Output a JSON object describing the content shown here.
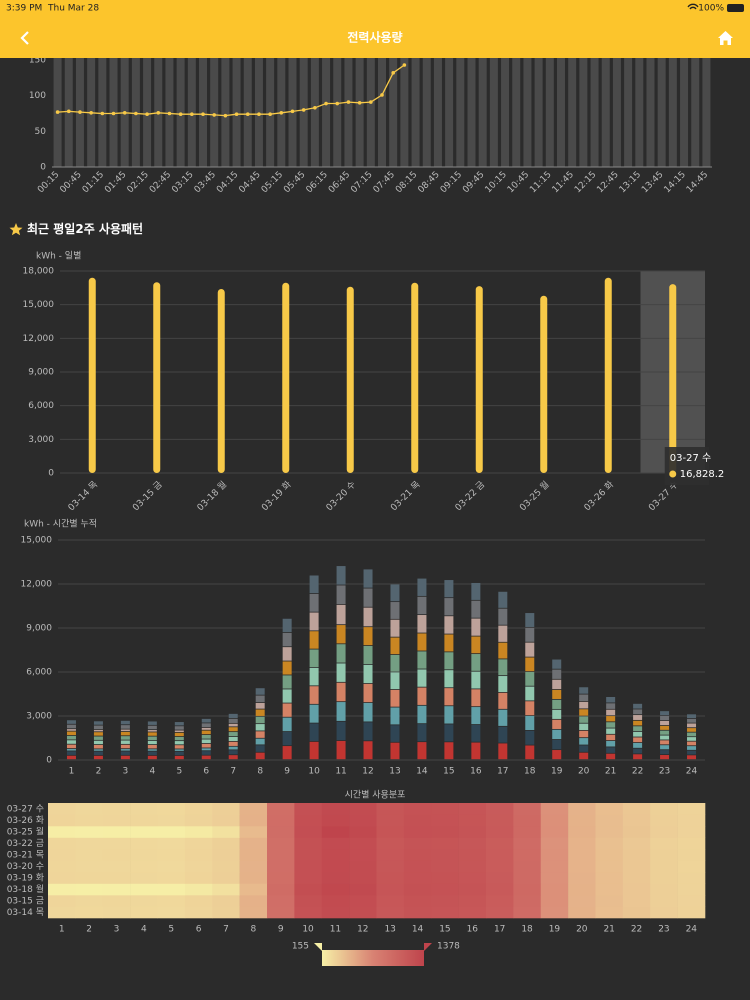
{
  "status_bar": {
    "time": "3:39 PM",
    "date": "Thu Mar 28",
    "battery": "100%"
  },
  "nav": {
    "title": "전력사용량"
  },
  "section_title": "최근 평일2주 사용패턴",
  "chart_data": [
    {
      "type": "line",
      "categories": [
        "00:15",
        null,
        "00:45",
        null,
        "01:15",
        null,
        "01:45",
        null,
        "02:15",
        null,
        "02:45",
        null,
        "03:15",
        null,
        "03:45",
        null,
        "04:15",
        null,
        "04:45",
        null,
        "05:15",
        null,
        "05:45",
        null,
        "06:15",
        null,
        "06:45",
        null,
        "07:15",
        null,
        "07:45",
        null,
        "08:15",
        null,
        "08:45",
        null,
        "09:15",
        null,
        "09:45",
        null,
        "10:15",
        null,
        "10:45",
        null,
        "11:15",
        null,
        "11:45",
        null,
        "12:15",
        null,
        "12:45",
        null,
        "13:15",
        null,
        "13:45",
        null,
        "14:15",
        null,
        "14:45"
      ],
      "values": [
        77,
        78,
        77,
        76,
        75,
        75,
        76,
        75,
        74,
        76,
        75,
        74,
        74,
        74,
        73,
        72,
        74,
        74,
        74,
        74,
        76,
        78,
        80,
        83,
        89,
        89,
        91,
        90,
        91,
        101,
        132,
        143,
        null,
        null,
        null,
        null,
        null,
        null,
        null,
        null,
        null,
        null,
        null,
        null,
        null,
        null,
        null,
        null,
        null,
        null,
        null,
        null,
        null,
        null,
        null,
        null,
        null,
        null,
        null
      ],
      "color": "#f7c948",
      "ylim": [
        0,
        150
      ],
      "yticks": [
        0,
        50,
        100,
        150
      ]
    },
    {
      "type": "bar",
      "y_label": "kWh - 일별",
      "categories": [
        "03-14 목",
        "03-15 금",
        "03-18 월",
        "03-19 화",
        "03-20 수",
        "03-21 목",
        "03-22 금",
        "03-25 월",
        "03-26 화",
        "03-27 수"
      ],
      "values": [
        17400,
        17000,
        16400,
        16950,
        16600,
        16950,
        16650,
        15800,
        17400,
        16828.2
      ],
      "value_labels": [
        null,
        null,
        null,
        null,
        null,
        null,
        null,
        null,
        null,
        "16,828.2"
      ],
      "color": "#f7c948",
      "ylim": [
        0,
        18000
      ],
      "yticks": [
        0,
        {
          "value": 3000,
          "label": "3,000"
        },
        {
          "value": 6000,
          "label": "6,000"
        },
        {
          "value": 9000,
          "label": "9,000"
        },
        {
          "value": 12000,
          "label": "12,000"
        },
        {
          "value": 15000,
          "label": "15,000"
        },
        {
          "value": 18000,
          "label": "18,000"
        }
      ],
      "grid": true
    },
    {
      "type": "stacked_bar",
      "y_label": "kWh - 시간별 누적",
      "categories": [
        "1",
        "2",
        "3",
        "4",
        "5",
        "6",
        "7",
        "8",
        "9",
        "10",
        "11",
        "12",
        "13",
        "14",
        "15",
        "16",
        "17",
        "18",
        "19",
        "20",
        "21",
        "22",
        "23",
        "24"
      ],
      "series": [
        {
          "name": "03-14 목",
          "color": "#c23531",
          "values": [
            290,
            285,
            290,
            285,
            280,
            300,
            330,
            500,
            950,
            1240,
            1300,
            1280,
            1180,
            1220,
            1210,
            1190,
            1130,
            990,
            680,
            500,
            430,
            390,
            340,
            320
          ]
        },
        {
          "name": "03-15 금",
          "color": "#2f4554",
          "values": [
            300,
            290,
            295,
            290,
            285,
            305,
            335,
            505,
            960,
            1250,
            1310,
            1290,
            1190,
            1230,
            1220,
            1200,
            1140,
            1000,
            690,
            495,
            435,
            385,
            335,
            315
          ]
        },
        {
          "name": "03-18 월",
          "color": "#61a0a8",
          "values": [
            160,
            155,
            160,
            158,
            160,
            190,
            240,
            450,
            980,
            1280,
            1340,
            1320,
            1210,
            1250,
            1240,
            1220,
            1160,
            1010,
            690,
            500,
            430,
            385,
            335,
            310
          ]
        },
        {
          "name": "03-19 화",
          "color": "#d48265",
          "values": [
            300,
            295,
            295,
            290,
            285,
            305,
            335,
            500,
            965,
            1260,
            1320,
            1300,
            1200,
            1240,
            1230,
            1210,
            1150,
            1005,
            685,
            495,
            430,
            380,
            330,
            310
          ]
        },
        {
          "name": "03-20 수",
          "color": "#91c7ae",
          "values": [
            295,
            290,
            290,
            285,
            280,
            300,
            330,
            495,
            960,
            1255,
            1315,
            1295,
            1195,
            1235,
            1225,
            1205,
            1145,
            1000,
            680,
            490,
            425,
            380,
            330,
            305
          ]
        },
        {
          "name": "03-21 목",
          "color": "#749f83",
          "values": [
            300,
            290,
            295,
            290,
            285,
            305,
            335,
            500,
            955,
            1250,
            1310,
            1290,
            1190,
            1230,
            1220,
            1200,
            1140,
            995,
            680,
            490,
            425,
            380,
            330,
            310
          ]
        },
        {
          "name": "03-22 금",
          "color": "#ca8622",
          "values": [
            295,
            290,
            290,
            285,
            280,
            300,
            330,
            495,
            950,
            1245,
            1305,
            1285,
            1185,
            1225,
            1215,
            1195,
            1135,
            990,
            675,
            490,
            420,
            375,
            325,
            305
          ]
        },
        {
          "name": "03-25 월",
          "color": "#bda29a",
          "values": [
            165,
            160,
            162,
            160,
            158,
            185,
            235,
            445,
            975,
            1275,
            1378,
            1330,
            1215,
            1255,
            1245,
            1225,
            1165,
            1015,
            695,
            505,
            435,
            390,
            340,
            315
          ]
        },
        {
          "name": "03-26 화",
          "color": "#6e7074",
          "values": [
            305,
            295,
            300,
            295,
            290,
            310,
            340,
            505,
            970,
            1265,
            1325,
            1305,
            1205,
            1245,
            1235,
            1215,
            1155,
            1010,
            690,
            500,
            435,
            385,
            335,
            315
          ]
        },
        {
          "name": "03-27 수",
          "color": "#546570",
          "values": [
            300,
            290,
            295,
            290,
            285,
            305,
            335,
            500,
            965,
            1260,
            1320,
            1300,
            1200,
            1240,
            1230,
            1210,
            1150,
            1005,
            685,
            495,
            430,
            380,
            330,
            310
          ]
        }
      ],
      "ylim": [
        0,
        15000
      ],
      "yticks": [
        0,
        {
          "value": 3000,
          "label": "3,000"
        },
        {
          "value": 6000,
          "label": "6,000"
        },
        {
          "value": 9000,
          "label": "9,000"
        },
        {
          "value": 12000,
          "label": "12,000"
        },
        {
          "value": 15000,
          "label": "15,000"
        }
      ],
      "grid": true,
      "heatmap_title": "시간별 사용분포",
      "visual_map": {
        "min": 155,
        "max": 1378,
        "colors": [
          "#f6efa6",
          "#d88273",
          "#bf444c"
        ]
      }
    }
  ]
}
